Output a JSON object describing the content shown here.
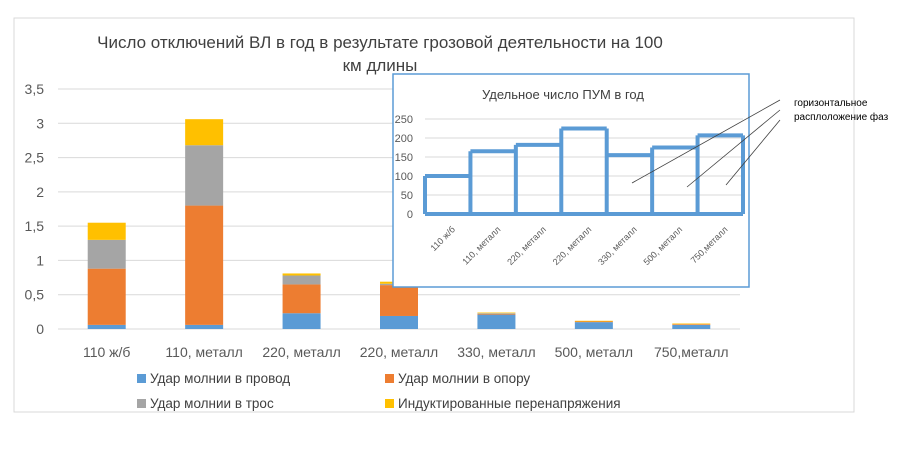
{
  "chart_data": [
    {
      "type": "bar",
      "stacked": true,
      "title_line1": "Число отключений  ВЛ в год в результате грозовой деятельности на 100",
      "title_line2": "км длины",
      "xlabel": "",
      "ylabel": "",
      "ylim": [
        0,
        3.5
      ],
      "ytick_labels": [
        "0",
        "0,5",
        "1",
        "1,5",
        "2",
        "2,5",
        "3",
        "3,5"
      ],
      "grid": true,
      "legend_position": "bottom",
      "categories": [
        "110 ж/б",
        "110, металл",
        "220, металл",
        "220, металл",
        "330, металл",
        "500, металл",
        "750,металл"
      ],
      "series": [
        {
          "name": "Удар молнии  в провод",
          "color": "#5b9bd5",
          "values": [
            0.06,
            0.06,
            0.23,
            0.19,
            0.21,
            0.1,
            0.06
          ]
        },
        {
          "name": "Удар молнии  в опору",
          "color": "#ed7d31",
          "values": [
            0.82,
            1.74,
            0.42,
            0.45,
            0.01,
            0.01,
            0.01
          ]
        },
        {
          "name": "Удар молнии в трос",
          "color": "#a5a5a5",
          "values": [
            0.42,
            0.88,
            0.13,
            0.02,
            0.01,
            0.0,
            0.0
          ]
        },
        {
          "name": "Индуктированные перенапряжения",
          "color": "#ffc000",
          "values": [
            0.25,
            0.38,
            0.03,
            0.03,
            0.01,
            0.01,
            0.01
          ]
        }
      ]
    },
    {
      "type": "line",
      "style": "step",
      "title": "Удельное число ПУМ в год",
      "ylim": [
        0,
        250
      ],
      "ytick_labels": [
        "0",
        "50",
        "100",
        "150",
        "200",
        "250"
      ],
      "grid": true,
      "categories": [
        "110 ж/б",
        "110, металл",
        "220, металл",
        "220, металл",
        "330, металл",
        "500, металл",
        "750,металл"
      ],
      "series": [
        {
          "color": "#5b9bd5",
          "values": [
            100,
            165,
            182,
            225,
            155,
            175,
            207
          ]
        }
      ]
    }
  ],
  "annotation": {
    "label_line1": "горизонтальное",
    "label_line2": "расплоложение фаз"
  }
}
